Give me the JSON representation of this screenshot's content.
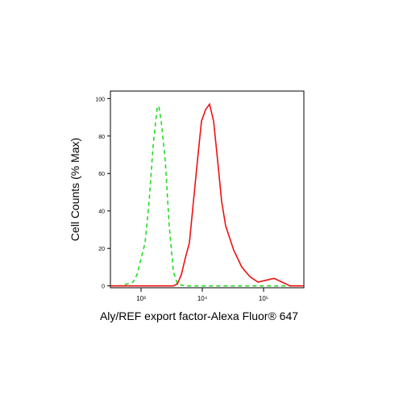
{
  "chart_data": {
    "type": "line",
    "ylabel": "Cell Counts (% Max)",
    "xlabel": "Aly/REF export factor-Alexa Fluor® 647",
    "log_x": true,
    "xlim": [
      316,
      455000
    ],
    "ylim": [
      -1,
      104
    ],
    "xticks": [
      {
        "value": 1000,
        "label": "10³"
      },
      {
        "value": 10000,
        "label": "10⁴"
      },
      {
        "value": 100000,
        "label": "10⁵"
      }
    ],
    "yticks": [
      0,
      20,
      40,
      60,
      80,
      100
    ],
    "series": [
      {
        "color": "#22dd22",
        "dash": true,
        "x": [
          316,
          469,
          738,
          859,
          1164,
          1354,
          1575,
          1833,
          1946,
          2133,
          2483,
          2890,
          3357,
          3908,
          5292,
          455000
        ],
        "values": [
          0,
          0,
          2,
          6,
          23,
          45,
          75,
          95,
          96,
          88,
          67,
          32,
          8,
          1,
          0,
          0
        ]
      },
      {
        "color": "#ee1111",
        "dash": false,
        "x": [
          316,
          3357,
          3908,
          4550,
          5292,
          6150,
          7160,
          8340,
          9700,
          11290,
          13140,
          15290,
          17780,
          20690,
          24080,
          32600,
          44160,
          59750,
          80900,
          109500,
          148200,
          200700,
          271700,
          455000
        ],
        "values": [
          0,
          0,
          1,
          6,
          15,
          23,
          45,
          67,
          88,
          94,
          97,
          88,
          67,
          45,
          32,
          19,
          10,
          5,
          2,
          3,
          4,
          2,
          0,
          0
        ]
      }
    ]
  }
}
